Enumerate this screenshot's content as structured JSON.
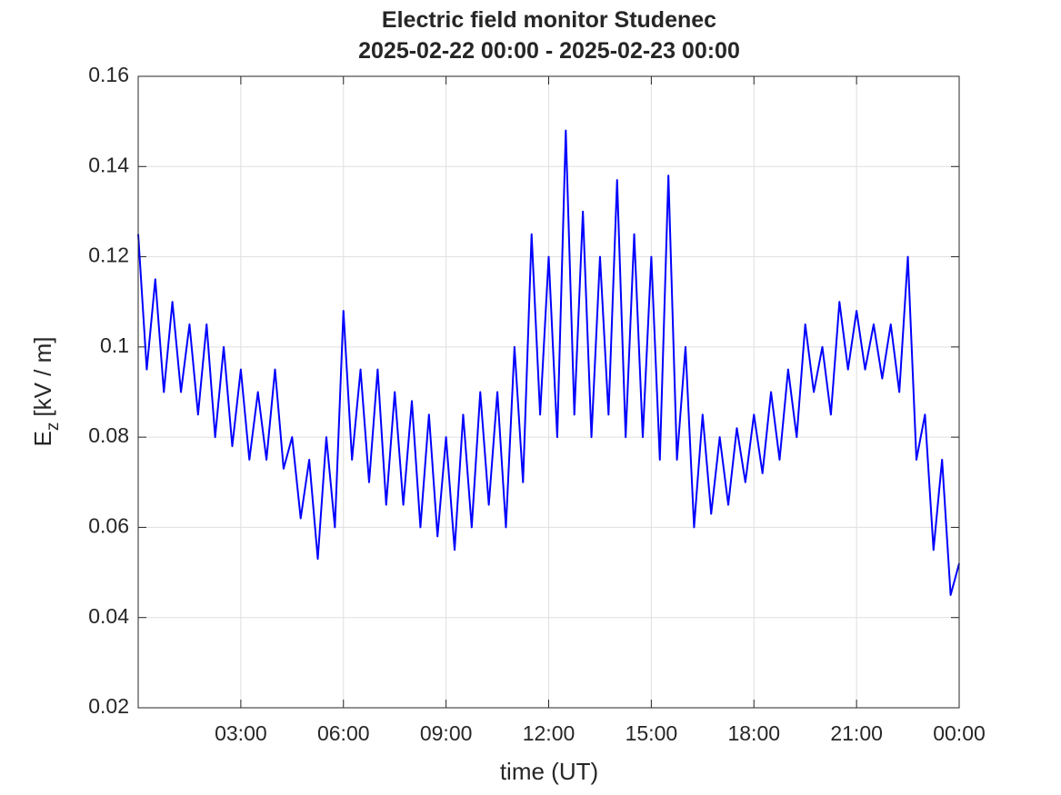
{
  "chart_data": {
    "type": "line",
    "title": "Electric field monitor Studenec",
    "subtitle": "2025-02-22 00:00 - 2025-02-23 00:00",
    "xlabel": "time (UT)",
    "ylabel": "E",
    "ylabel_subscript": "z",
    "ylabel_unit": "[kV / m]",
    "color": "#0000ff",
    "grid": true,
    "xlim": [
      0,
      24
    ],
    "xticks": [
      {
        "value": 3,
        "label": "03:00"
      },
      {
        "value": 6,
        "label": "06:00"
      },
      {
        "value": 9,
        "label": "09:00"
      },
      {
        "value": 12,
        "label": "12:00"
      },
      {
        "value": 15,
        "label": "15:00"
      },
      {
        "value": 18,
        "label": "18:00"
      },
      {
        "value": 21,
        "label": "21:00"
      },
      {
        "value": 24,
        "label": "00:00"
      }
    ],
    "ylim": [
      0.02,
      0.16
    ],
    "yticks": [
      0.02,
      0.04,
      0.06,
      0.08,
      0.1,
      0.12,
      0.14,
      0.16
    ],
    "x": [
      0,
      0.25,
      0.5,
      0.75,
      1,
      1.25,
      1.5,
      1.75,
      2,
      2.25,
      2.5,
      2.75,
      3,
      3.25,
      3.5,
      3.75,
      4,
      4.25,
      4.5,
      4.75,
      5,
      5.25,
      5.5,
      5.75,
      6,
      6.25,
      6.5,
      6.75,
      7,
      7.25,
      7.5,
      7.75,
      8,
      8.25,
      8.5,
      8.75,
      9,
      9.25,
      9.5,
      9.75,
      10,
      10.25,
      10.5,
      10.75,
      11,
      11.25,
      11.5,
      11.75,
      12,
      12.25,
      12.5,
      12.75,
      13,
      13.25,
      13.5,
      13.75,
      14,
      14.25,
      14.5,
      14.75,
      15,
      15.25,
      15.5,
      15.75,
      16,
      16.25,
      16.5,
      16.75,
      17,
      17.25,
      17.5,
      17.75,
      18,
      18.25,
      18.5,
      18.75,
      19,
      19.25,
      19.5,
      19.75,
      20,
      20.25,
      20.5,
      20.75,
      21,
      21.25,
      21.5,
      21.75,
      22,
      22.25,
      22.5,
      22.75,
      23,
      23.25,
      23.5,
      23.75,
      24
    ],
    "values": [
      0.125,
      0.095,
      0.115,
      0.09,
      0.11,
      0.09,
      0.105,
      0.085,
      0.105,
      0.08,
      0.1,
      0.078,
      0.095,
      0.075,
      0.09,
      0.075,
      0.095,
      0.073,
      0.08,
      0.062,
      0.075,
      0.053,
      0.08,
      0.06,
      0.108,
      0.075,
      0.095,
      0.07,
      0.095,
      0.065,
      0.09,
      0.065,
      0.088,
      0.06,
      0.085,
      0.058,
      0.08,
      0.055,
      0.085,
      0.06,
      0.09,
      0.065,
      0.09,
      0.06,
      0.1,
      0.07,
      0.125,
      0.085,
      0.12,
      0.08,
      0.148,
      0.085,
      0.13,
      0.08,
      0.12,
      0.085,
      0.137,
      0.08,
      0.125,
      0.08,
      0.12,
      0.075,
      0.138,
      0.075,
      0.1,
      0.06,
      0.085,
      0.063,
      0.08,
      0.065,
      0.082,
      0.07,
      0.085,
      0.072,
      0.09,
      0.075,
      0.095,
      0.08,
      0.105,
      0.09,
      0.1,
      0.085,
      0.11,
      0.095,
      0.108,
      0.095,
      0.105,
      0.093,
      0.105,
      0.09,
      0.12,
      0.075,
      0.085,
      0.055,
      0.075,
      0.045,
      0.052
    ]
  }
}
